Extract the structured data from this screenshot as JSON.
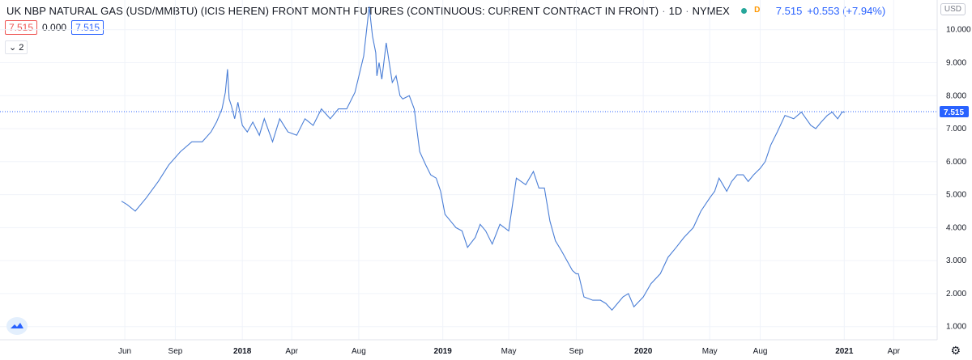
{
  "header": {
    "title": "UK NBP NATURAL GAS (USD/MMBTU) (ICIS HEREN) FRONT MONTH FUTURES (CONTINUOUS: CURRENT CONTRACT IN FRONT)",
    "interval": "1D",
    "exchange": "NYMEX",
    "interval_badge": "D",
    "last_price": "7.515",
    "change": "+0.553 (+7.94%)"
  },
  "ohlc": {
    "value_red": "7.515",
    "value_zero": "0.000",
    "value_blue": "7.515"
  },
  "collapse_label": "2",
  "currency_label": "USD",
  "colors": {
    "line": "#4a7ed6",
    "price_tag": "#2962ff",
    "grid": "#f0f3fa"
  },
  "chart_data": {
    "type": "line",
    "series": [
      {
        "x": [
          "2017-05-26",
          "2017-06-05",
          "2017-06-20",
          "2017-07-10",
          "2017-08-01",
          "2017-08-20",
          "2017-09-10",
          "2017-10-01",
          "2017-10-20",
          "2017-11-05",
          "2017-11-15",
          "2017-11-25",
          "2017-12-01",
          "2017-12-05",
          "2017-12-08",
          "2017-12-12",
          "2017-12-18",
          "2017-12-24",
          "2018-01-01",
          "2018-01-10",
          "2018-01-20",
          "2018-02-01",
          "2018-02-10",
          "2018-02-25",
          "2018-03-10",
          "2018-03-25",
          "2018-04-10",
          "2018-04-25",
          "2018-05-10",
          "2018-05-25",
          "2018-06-10",
          "2018-06-25",
          "2018-07-10",
          "2018-07-25",
          "2018-08-10",
          "2018-08-20",
          "2018-08-26",
          "2018-09-01",
          "2018-09-03",
          "2018-09-07",
          "2018-09-12",
          "2018-09-20",
          "2018-10-01",
          "2018-10-08",
          "2018-10-15",
          "2018-10-20",
          "2018-11-01",
          "2018-11-10",
          "2018-11-20",
          "2018-12-01",
          "2018-12-10",
          "2018-12-20",
          "2018-12-28",
          "2019-01-05",
          "2019-01-15",
          "2019-01-25",
          "2019-02-05",
          "2019-02-15",
          "2019-03-01",
          "2019-03-10",
          "2019-03-20",
          "2019-04-01",
          "2019-04-15",
          "2019-05-01",
          "2019-05-15",
          "2019-06-01",
          "2019-06-15",
          "2019-06-25",
          "2019-07-05",
          "2019-07-15",
          "2019-07-25",
          "2019-08-05",
          "2019-08-15",
          "2019-08-25",
          "2019-09-01",
          "2019-09-05",
          "2019-09-15",
          "2019-10-01",
          "2019-10-15",
          "2019-10-25",
          "2019-11-05",
          "2019-11-15",
          "2019-11-25",
          "2019-12-05",
          "2019-12-15",
          "2020-01-01",
          "2020-01-15",
          "2020-02-01",
          "2020-02-15",
          "2020-03-01",
          "2020-03-15",
          "2020-04-01",
          "2020-04-15",
          "2020-05-01",
          "2020-05-10",
          "2020-05-18",
          "2020-05-25",
          "2020-06-01",
          "2020-06-10",
          "2020-06-20",
          "2020-07-01",
          "2020-07-10",
          "2020-07-20",
          "2020-08-01",
          "2020-08-10",
          "2020-08-20",
          "2020-09-01",
          "2020-09-15",
          "2020-10-01",
          "2020-10-15",
          "2020-11-01",
          "2020-11-10",
          "2020-11-20",
          "2020-12-01",
          "2020-12-10",
          "2020-12-20",
          "2020-12-28",
          "2021-01-02"
        ],
        "y": [
          4.8,
          4.7,
          4.5,
          4.9,
          5.4,
          5.9,
          6.3,
          6.6,
          6.6,
          6.9,
          7.2,
          7.6,
          8.1,
          8.8,
          7.9,
          7.7,
          7.3,
          7.8,
          7.1,
          6.9,
          7.2,
          6.8,
          7.3,
          6.6,
          7.3,
          6.9,
          6.8,
          7.3,
          7.1,
          7.6,
          7.3,
          7.6,
          7.6,
          8.1,
          9.2,
          10.7,
          9.8,
          9.3,
          8.6,
          9.0,
          8.5,
          9.6,
          8.4,
          8.6,
          8.0,
          7.9,
          8.0,
          7.6,
          6.3,
          5.9,
          5.6,
          5.5,
          5.1,
          4.4,
          4.2,
          4.0,
          3.9,
          3.4,
          3.7,
          4.1,
          3.9,
          3.5,
          4.1,
          3.9,
          5.5,
          5.3,
          5.7,
          5.2,
          5.2,
          4.2,
          3.6,
          3.3,
          3.0,
          2.7,
          2.6,
          2.6,
          1.9,
          1.8,
          1.8,
          1.7,
          1.5,
          1.7,
          1.9,
          2.0,
          1.6,
          1.9,
          2.3,
          2.6,
          3.1,
          3.4,
          3.7,
          4.0,
          4.5,
          4.9,
          5.1,
          5.5,
          5.3,
          5.1,
          5.4,
          5.6,
          5.6,
          5.4,
          5.6,
          5.8,
          6.0,
          6.5,
          6.9,
          7.4,
          7.3,
          7.5,
          7.1,
          7.0,
          7.2,
          7.4,
          7.5,
          7.3,
          7.5,
          7.5
        ]
      }
    ],
    "x_ticks": [
      "Jun",
      "Sep",
      "2018",
      "Apr",
      "Aug",
      "2019",
      "May",
      "Sep",
      "2020",
      "May",
      "Aug",
      "2021",
      "Apr"
    ],
    "y_ticks": [
      "1.000",
      "2.000",
      "3.000",
      "4.000",
      "5.000",
      "6.000",
      "7.000",
      "8.000",
      "9.000",
      "10.000"
    ],
    "ylim": [
      0.6,
      10.9
    ],
    "last_value_label": "7.515"
  }
}
